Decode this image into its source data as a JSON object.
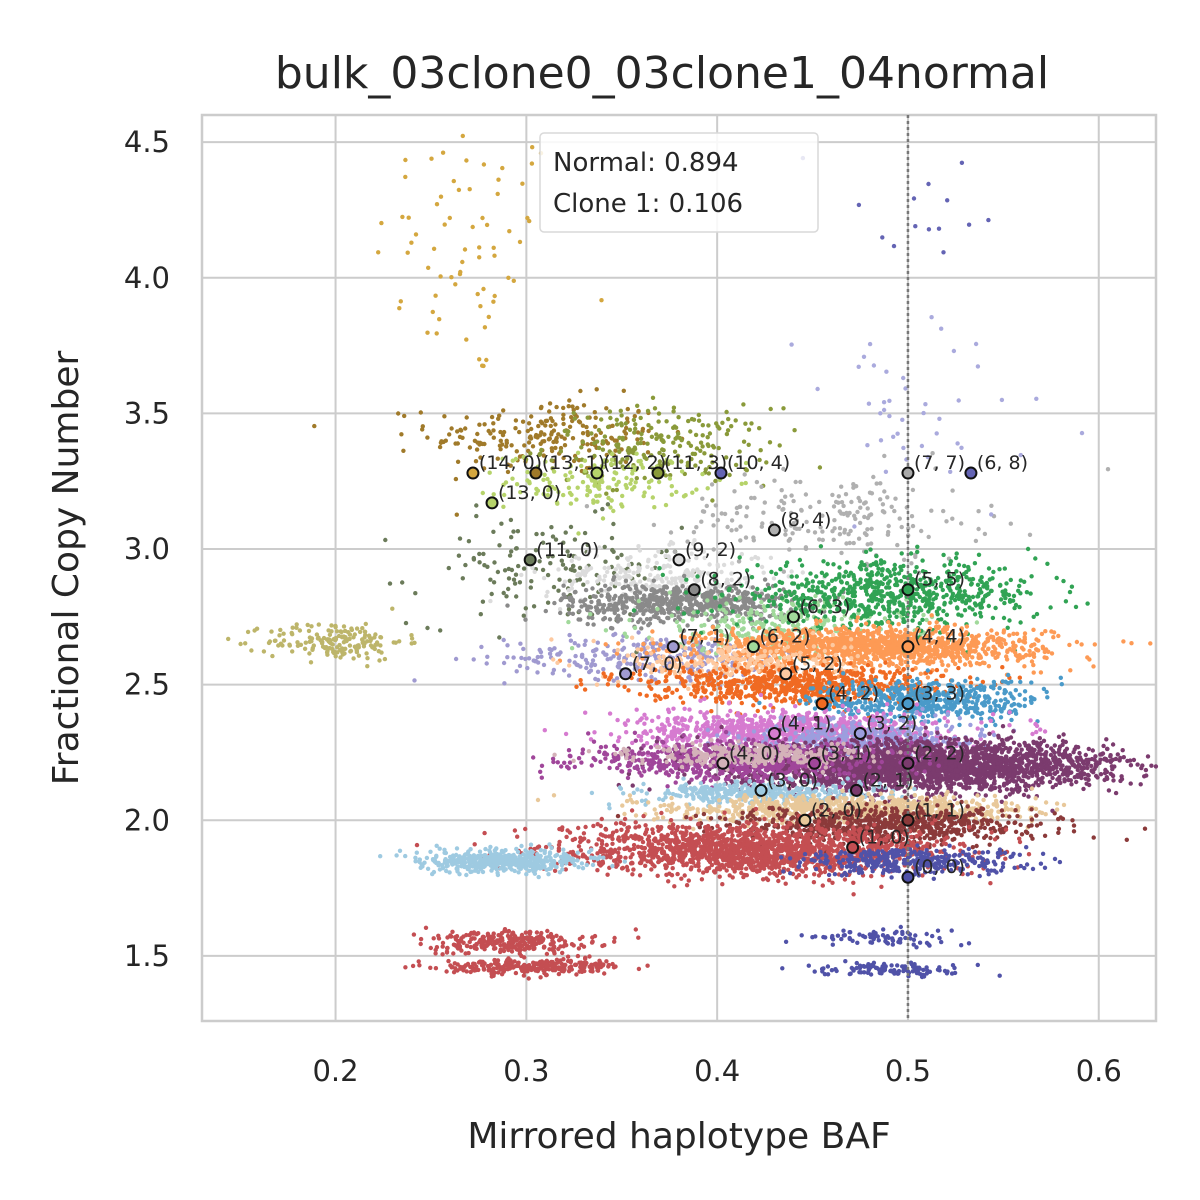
{
  "chart_data": {
    "type": "scatter",
    "title": "bulk_03clone0_03clone1_04normal",
    "xlabel": "Mirrored haplotype BAF",
    "ylabel": "Fractional Copy Number",
    "xlim": [
      0.13,
      0.63
    ],
    "ylim": [
      1.26,
      4.6
    ],
    "xticks": [
      "0.2",
      "0.3",
      "0.4",
      "0.5",
      "0.6"
    ],
    "yticks": [
      "1.5",
      "2.0",
      "2.5",
      "3.0",
      "3.5",
      "4.0",
      "4.5"
    ],
    "grid": true,
    "reference_line": {
      "x": 0.5,
      "style": "dotted"
    },
    "annotation": {
      "lines": [
        "Normal: 0.894",
        "Clone 1: 0.106"
      ],
      "placement": "top-center"
    },
    "clusters": [
      {
        "color": "#d4a73f",
        "cx": 0.27,
        "cy": 4.1,
        "sx": 0.025,
        "sy": 0.25,
        "n": 70
      },
      {
        "color": "#a07a2a",
        "cx": 0.31,
        "cy": 3.42,
        "sx": 0.03,
        "sy": 0.07,
        "n": 220
      },
      {
        "color": "#8a9a3a",
        "cx": 0.37,
        "cy": 3.38,
        "sx": 0.03,
        "sy": 0.07,
        "n": 220
      },
      {
        "color": "#b6d36a",
        "cx": 0.34,
        "cy": 3.25,
        "sx": 0.025,
        "sy": 0.05,
        "n": 160
      },
      {
        "color": "#6b7b5a",
        "cx": 0.31,
        "cy": 2.92,
        "sx": 0.035,
        "sy": 0.1,
        "n": 150
      },
      {
        "color": "#bdb56a",
        "cx": 0.2,
        "cy": 2.66,
        "sx": 0.018,
        "sy": 0.035,
        "n": 180
      },
      {
        "color": "#a09ad0",
        "cx": 0.37,
        "cy": 2.6,
        "sx": 0.04,
        "sy": 0.04,
        "n": 300
      },
      {
        "color": "#dcdcdc",
        "cx": 0.37,
        "cy": 2.9,
        "sx": 0.03,
        "sy": 0.05,
        "n": 250
      },
      {
        "color": "#8a8a8a",
        "cx": 0.38,
        "cy": 2.8,
        "sx": 0.03,
        "sy": 0.035,
        "n": 600
      },
      {
        "color": "#b0b0b0",
        "cx": 0.46,
        "cy": 3.12,
        "sx": 0.04,
        "sy": 0.08,
        "n": 200
      },
      {
        "color": "#aaaadd",
        "cx": 0.5,
        "cy": 3.45,
        "sx": 0.04,
        "sy": 0.2,
        "n": 45
      },
      {
        "color": "#6464b4",
        "cx": 0.51,
        "cy": 4.25,
        "sx": 0.03,
        "sy": 0.12,
        "n": 14
      },
      {
        "color": "#a1d99b",
        "cx": 0.43,
        "cy": 2.72,
        "sx": 0.035,
        "sy": 0.05,
        "n": 250
      },
      {
        "color": "#31a354",
        "cx": 0.49,
        "cy": 2.83,
        "sx": 0.04,
        "sy": 0.06,
        "n": 700
      },
      {
        "color": "#fd9a55",
        "cx": 0.48,
        "cy": 2.64,
        "sx": 0.045,
        "sy": 0.035,
        "n": 1300
      },
      {
        "color": "#fdc9a0",
        "cx": 0.41,
        "cy": 2.58,
        "sx": 0.03,
        "sy": 0.04,
        "n": 250
      },
      {
        "color": "#f06a22",
        "cx": 0.44,
        "cy": 2.5,
        "sx": 0.04,
        "sy": 0.035,
        "n": 700
      },
      {
        "color": "#4a9ac9",
        "cx": 0.51,
        "cy": 2.44,
        "sx": 0.03,
        "sy": 0.04,
        "n": 500
      },
      {
        "color": "#d67bd0",
        "cx": 0.44,
        "cy": 2.33,
        "sx": 0.04,
        "sy": 0.035,
        "n": 900
      },
      {
        "color": "#9c9ede",
        "cx": 0.48,
        "cy": 2.3,
        "sx": 0.03,
        "sy": 0.035,
        "n": 400
      },
      {
        "color": "#7b3b6e",
        "cx": 0.51,
        "cy": 2.2,
        "sx": 0.05,
        "sy": 0.045,
        "n": 2600
      },
      {
        "color": "#a0469a",
        "cx": 0.41,
        "cy": 2.22,
        "sx": 0.04,
        "sy": 0.035,
        "n": 700
      },
      {
        "color": "#d4b2b9",
        "cx": 0.42,
        "cy": 2.24,
        "sx": 0.03,
        "sy": 0.02,
        "n": 300
      },
      {
        "color": "#9ecae1",
        "cx": 0.42,
        "cy": 2.1,
        "sx": 0.03,
        "sy": 0.02,
        "n": 400
      },
      {
        "color": "#e8c89a",
        "cx": 0.47,
        "cy": 2.04,
        "sx": 0.045,
        "sy": 0.025,
        "n": 900
      },
      {
        "color": "#8b3a3a",
        "cx": 0.49,
        "cy": 1.98,
        "sx": 0.04,
        "sy": 0.035,
        "n": 700
      },
      {
        "color": "#c44e52",
        "cx": 0.42,
        "cy": 1.89,
        "sx": 0.05,
        "sy": 0.045,
        "n": 1700
      },
      {
        "color": "#5052a8",
        "cx": 0.5,
        "cy": 1.85,
        "sx": 0.03,
        "sy": 0.025,
        "n": 350
      },
      {
        "color": "#9ecae1",
        "cx": 0.29,
        "cy": 1.85,
        "sx": 0.022,
        "sy": 0.02,
        "n": 500
      },
      {
        "color": "#c44e52",
        "cx": 0.29,
        "cy": 1.55,
        "sx": 0.02,
        "sy": 0.02,
        "n": 280
      },
      {
        "color": "#c44e52",
        "cx": 0.3,
        "cy": 1.46,
        "sx": 0.025,
        "sy": 0.015,
        "n": 280
      },
      {
        "color": "#5052a8",
        "cx": 0.49,
        "cy": 1.57,
        "sx": 0.02,
        "sy": 0.015,
        "n": 80
      },
      {
        "color": "#5052a8",
        "cx": 0.49,
        "cy": 1.45,
        "sx": 0.02,
        "sy": 0.012,
        "n": 110
      }
    ],
    "centroids": [
      {
        "label": "(14, 0)",
        "x": 0.272,
        "y": 3.28,
        "color": "#d4a73f"
      },
      {
        "label": "(13, 1)",
        "x": 0.305,
        "y": 3.28,
        "color": "#a07a2a"
      },
      {
        "label": "(12, 2)",
        "x": 0.337,
        "y": 3.28,
        "color": "#b6d36a"
      },
      {
        "label": "(11, 3)",
        "x": 0.369,
        "y": 3.28,
        "color": "#8a9a3a"
      },
      {
        "label": "(10, 4)",
        "x": 0.402,
        "y": 3.28,
        "color": "#6464b4"
      },
      {
        "label": "(13, 0)",
        "x": 0.282,
        "y": 3.17,
        "color": "#b6d36a"
      },
      {
        "label": "(7, 7)",
        "x": 0.5,
        "y": 3.28,
        "color": "#aaaaaa"
      },
      {
        "label": "(6, 8)",
        "x": 0.533,
        "y": 3.28,
        "color": "#6464b4"
      },
      {
        "label": "(8, 4)",
        "x": 0.43,
        "y": 3.07,
        "color": "#b0b0b0"
      },
      {
        "label": "(11, 0)",
        "x": 0.302,
        "y": 2.96,
        "color": "#6b7b5a"
      },
      {
        "label": "(9, 2)",
        "x": 0.38,
        "y": 2.96,
        "color": "#dcdcdc"
      },
      {
        "label": "(8, 2)",
        "x": 0.388,
        "y": 2.85,
        "color": "#8a8a8a"
      },
      {
        "label": "(5, 5)",
        "x": 0.5,
        "y": 2.85,
        "color": "#31a354"
      },
      {
        "label": "(6, 3)",
        "x": 0.44,
        "y": 2.75,
        "color": "#a1d99b"
      },
      {
        "label": "(7, 1)",
        "x": 0.377,
        "y": 2.64,
        "color": "#a09ad0"
      },
      {
        "label": "(6, 2)",
        "x": 0.419,
        "y": 2.64,
        "color": "#a1d99b"
      },
      {
        "label": "(4, 4)",
        "x": 0.5,
        "y": 2.64,
        "color": "#fd9a55"
      },
      {
        "label": "(5, 2)",
        "x": 0.436,
        "y": 2.54,
        "color": "#fdc9a0"
      },
      {
        "label": "(7, 0)",
        "x": 0.352,
        "y": 2.54,
        "color": "#a09ad0"
      },
      {
        "label": "(4, 2)",
        "x": 0.455,
        "y": 2.43,
        "color": "#f06a22"
      },
      {
        "label": "(3, 3)",
        "x": 0.5,
        "y": 2.43,
        "color": "#4a9ac9"
      },
      {
        "label": "(4, 1)",
        "x": 0.43,
        "y": 2.32,
        "color": "#d67bd0"
      },
      {
        "label": "(3, 2)",
        "x": 0.475,
        "y": 2.32,
        "color": "#9c9ede"
      },
      {
        "label": "(4, 0)",
        "x": 0.403,
        "y": 2.21,
        "color": "#d4b2b9"
      },
      {
        "label": "(3, 1)",
        "x": 0.451,
        "y": 2.21,
        "color": "#a0469a"
      },
      {
        "label": "(2, 2)",
        "x": 0.5,
        "y": 2.21,
        "color": "#7b3b6e"
      },
      {
        "label": "(3, 0)",
        "x": 0.423,
        "y": 2.11,
        "color": "#9ecae1"
      },
      {
        "label": "(2, 1)",
        "x": 0.473,
        "y": 2.11,
        "color": "#7b3b6e"
      },
      {
        "label": "(2, 0)",
        "x": 0.446,
        "y": 2.0,
        "color": "#e8c89a"
      },
      {
        "label": "(1, 1)",
        "x": 0.5,
        "y": 2.0,
        "color": "#8b3a3a"
      },
      {
        "label": "(1, 0)",
        "x": 0.471,
        "y": 1.9,
        "color": "#c44e52"
      },
      {
        "label": "(0, 0)",
        "x": 0.5,
        "y": 1.79,
        "color": "#5052a8"
      }
    ]
  }
}
